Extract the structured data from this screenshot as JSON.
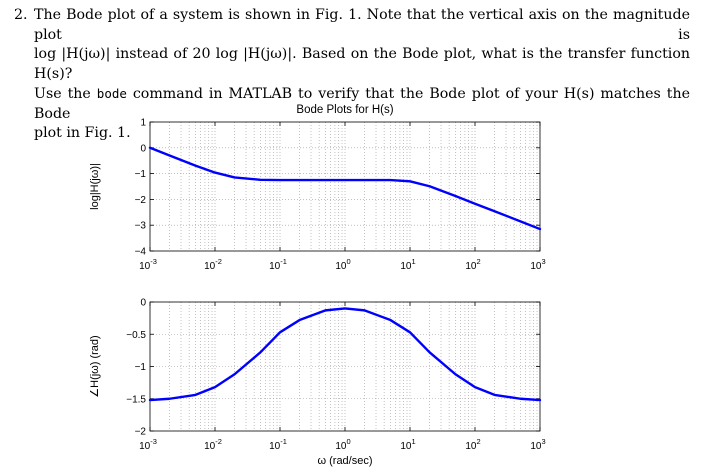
{
  "problem": {
    "number": "2.",
    "lines": [
      [
        "The Bode plot of a system is shown in Fig. 1. Note that the vertical axis on the magnitude plot is"
      ],
      [
        "log |H(jω)| instead of 20 log |H(jω)|. Based on the Bode plot, what is the transfer function H(s)?"
      ],
      [
        "Use the ",
        "bode",
        " command in MATLAB to verify that the Bode plot of your H(s) matches the Bode"
      ],
      [
        "plot in Fig. 1."
      ]
    ]
  },
  "chart_data": [
    {
      "type": "line",
      "title": "Bode Plots for H(s)",
      "ylabel": "log|H(jω)|",
      "xlabel": "",
      "xscale": "log",
      "xlim": [
        0.001,
        1000
      ],
      "ylim": [
        -4,
        1
      ],
      "xticks": [
        {
          "base": "10",
          "exp": "-3"
        },
        {
          "base": "10",
          "exp": "-2"
        },
        {
          "base": "10",
          "exp": "-1"
        },
        {
          "base": "10",
          "exp": "0"
        },
        {
          "base": "10",
          "exp": "1"
        },
        {
          "base": "10",
          "exp": "2"
        },
        {
          "base": "10",
          "exp": "3"
        }
      ],
      "yticks": [
        "1",
        "0",
        "-1",
        "-2",
        "-3",
        "-4"
      ],
      "grid": true,
      "line_color": "#0000ff",
      "series": [
        {
          "x": [
            0.001,
            0.002,
            0.005,
            0.01,
            0.02,
            0.05,
            0.1,
            0.2,
            0.5,
            1,
            2,
            5,
            10,
            20,
            50,
            100,
            200,
            500,
            1000
          ],
          "y": [
            0.0,
            -0.3,
            -0.69,
            -0.96,
            -1.15,
            -1.24,
            -1.25,
            -1.25,
            -1.25,
            -1.25,
            -1.25,
            -1.25,
            -1.3,
            -1.49,
            -1.87,
            -2.17,
            -2.46,
            -2.85,
            -3.15
          ]
        }
      ]
    },
    {
      "type": "line",
      "title": "",
      "ylabel": "∠H(jω) (rad)",
      "xlabel": "ω (rad/sec)",
      "xscale": "log",
      "xlim": [
        0.001,
        1000
      ],
      "ylim": [
        -2,
        0
      ],
      "xticks": [
        {
          "base": "10",
          "exp": "-3"
        },
        {
          "base": "10",
          "exp": "-2"
        },
        {
          "base": "10",
          "exp": "-1"
        },
        {
          "base": "10",
          "exp": "0"
        },
        {
          "base": "10",
          "exp": "1"
        },
        {
          "base": "10",
          "exp": "2"
        },
        {
          "base": "10",
          "exp": "3"
        }
      ],
      "yticks": [
        "0",
        "-0.5",
        "-1",
        "-1.5",
        "-2"
      ],
      "grid": true,
      "line_color": "#0000ff",
      "series": [
        {
          "x": [
            0.001,
            0.002,
            0.005,
            0.01,
            0.02,
            0.05,
            0.1,
            0.2,
            0.5,
            1,
            2,
            5,
            10,
            20,
            50,
            100,
            200,
            500,
            1000
          ],
          "y": [
            -1.52,
            -1.5,
            -1.44,
            -1.32,
            -1.12,
            -0.78,
            -0.47,
            -0.28,
            -0.13,
            -0.1,
            -0.13,
            -0.28,
            -0.47,
            -0.78,
            -1.12,
            -1.32,
            -1.44,
            -1.5,
            -1.52
          ]
        }
      ]
    }
  ]
}
